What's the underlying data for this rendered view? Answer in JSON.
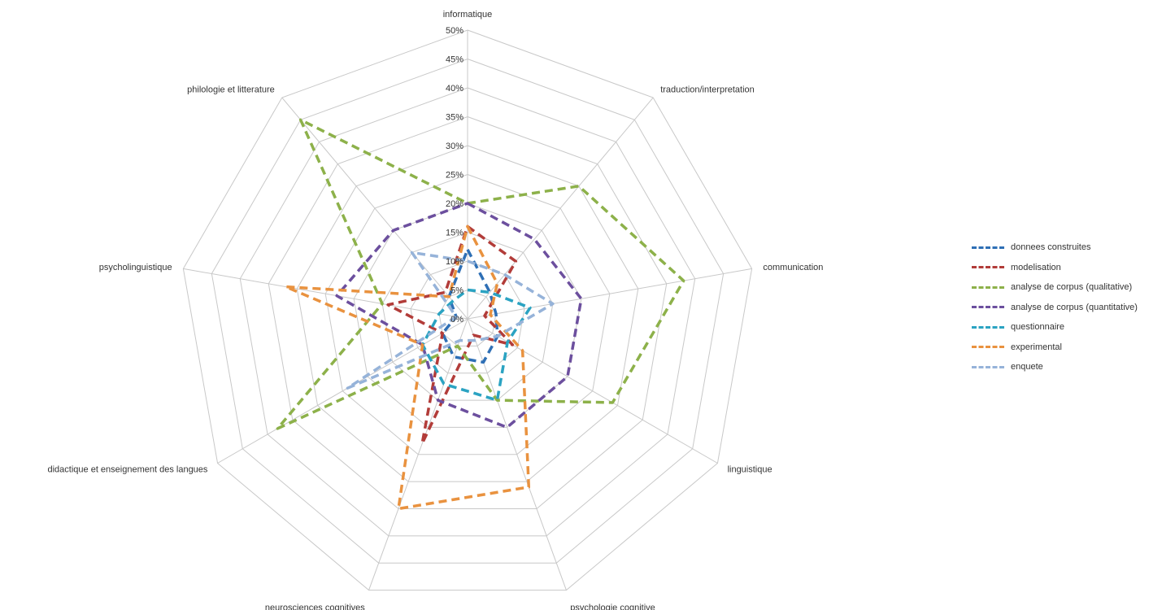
{
  "chart_data": {
    "type": "radar",
    "title": "",
    "legend_position": "right",
    "grid": true,
    "rlim": [
      0,
      50
    ],
    "ticks": [
      "0%",
      "5%",
      "10%",
      "15%",
      "20%",
      "25%",
      "30%",
      "35%",
      "40%",
      "45%",
      "50%"
    ],
    "axes": [
      "informatique",
      "traduction/interpretation",
      "communication",
      "linguistique",
      "psychologie cognitive",
      "neurosciences cognitives",
      "didactique et enseignement des langues",
      "psycholinguistique",
      "philologie et litterature"
    ],
    "series": [
      {
        "name": "donnees construites",
        "color": "#2e6fb5",
        "values": [
          12,
          6,
          5,
          6,
          8,
          7,
          5,
          2,
          5
        ]
      },
      {
        "name": "modelisation",
        "color": "#b23c39",
        "values": [
          16,
          13,
          3,
          9,
          3,
          23,
          5,
          14,
          6
        ]
      },
      {
        "name": "analyse de corpus (qualitative)",
        "color": "#8db14a",
        "values": [
          20,
          30,
          38,
          29,
          15,
          5,
          38,
          15,
          45
        ]
      },
      {
        "name": "analyse de corpus (quantitative)",
        "color": "#6c4f9e",
        "values": [
          20,
          18,
          20,
          20,
          20,
          15,
          9,
          23,
          20
        ]
      },
      {
        "name": "questionnaire",
        "color": "#2ba3c2",
        "values": [
          5,
          6,
          11,
          8,
          15,
          12,
          9,
          5,
          4
        ]
      },
      {
        "name": "experimental",
        "color": "#e9923f",
        "values": [
          16,
          8,
          4,
          11,
          31,
          35,
          9,
          32,
          5
        ]
      },
      {
        "name": "enquete",
        "color": "#96b3d9",
        "values": [
          10,
          10,
          15,
          6,
          4,
          4,
          24,
          2,
          15
        ]
      }
    ]
  }
}
